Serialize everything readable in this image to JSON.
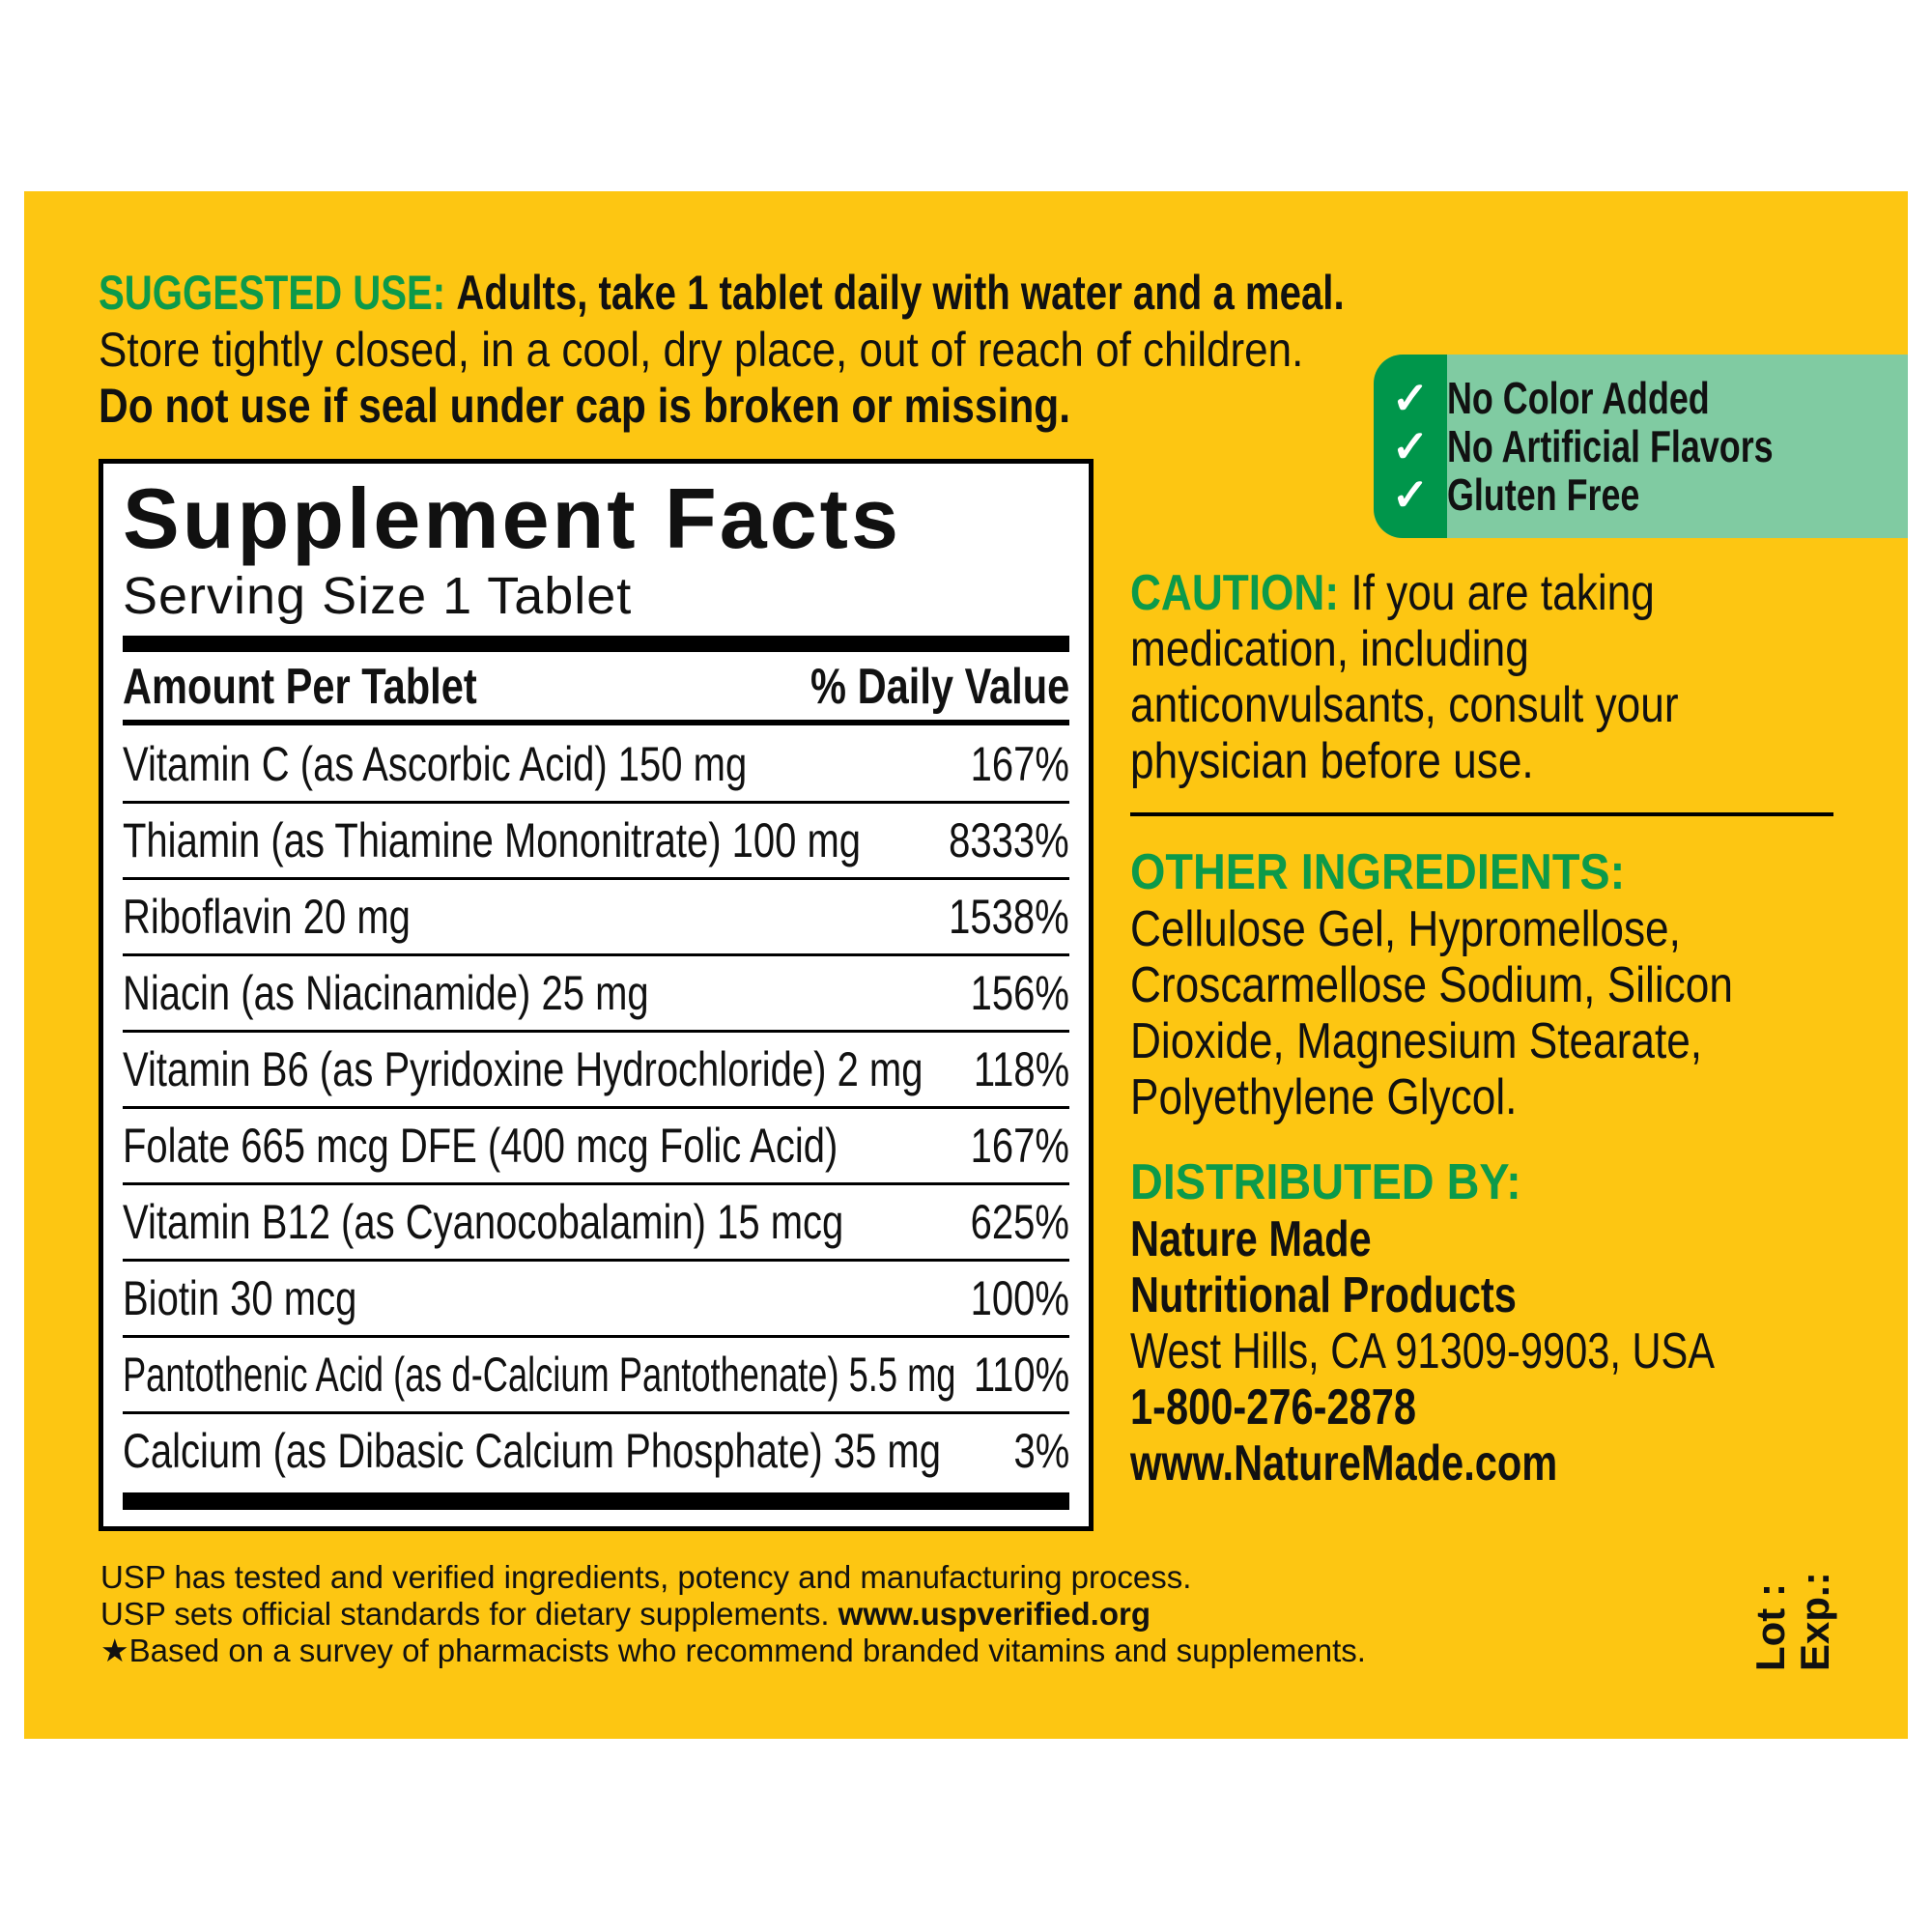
{
  "suggested_use": {
    "label": "SUGGESTED USE:",
    "text": "Adults, take 1 tablet daily with water and a meal.",
    "store": "Store tightly closed, in a cool, dry place, out of reach of children.",
    "seal": "Do not use if seal under cap is broken or missing."
  },
  "badge": {
    "icon": "check-icon",
    "check": "✓",
    "items": [
      "No Color Added",
      "No Artificial Flavors",
      "Gluten Free"
    ]
  },
  "facts": {
    "title": "Supplement Facts",
    "serving": "Serving Size 1 Tablet",
    "col_amount": "Amount Per Tablet",
    "col_dv": "% Daily Value",
    "rows": [
      {
        "name": "Vitamin C (as Ascorbic Acid) 150 mg",
        "dv": "167%"
      },
      {
        "name": "Thiamin (as Thiamine Mononitrate) 100 mg",
        "dv": "8333%"
      },
      {
        "name": "Riboflavin 20 mg",
        "dv": "1538%"
      },
      {
        "name": "Niacin (as Niacinamide) 25 mg",
        "dv": "156%"
      },
      {
        "name": "Vitamin B6 (as Pyridoxine Hydrochloride) 2 mg",
        "dv": "118%"
      },
      {
        "name": "Folate 665 mcg DFE (400 mcg Folic Acid)",
        "dv": "167%"
      },
      {
        "name": "Vitamin B12 (as Cyanocobalamin) 15 mcg",
        "dv": "625%"
      },
      {
        "name": "Biotin 30 mcg",
        "dv": "100%"
      },
      {
        "name": "Pantothenic Acid (as d-Calcium Pantothenate) 5.5 mg",
        "dv": "110%"
      },
      {
        "name": "Calcium (as Dibasic Calcium Phosphate) 35 mg",
        "dv": "3%"
      }
    ]
  },
  "caution": {
    "label": "CAUTION:",
    "lines": [
      "If you are taking",
      "medication, including",
      "anticonvulsants, consult your",
      "physician before use."
    ]
  },
  "other": {
    "label": "OTHER INGREDIENTS:",
    "lines": [
      "Cellulose Gel, Hypromellose,",
      "Croscarmellose Sodium, Silicon",
      "Dioxide, Magnesium Stearate,",
      "Polyethylene Glycol."
    ]
  },
  "distributed": {
    "label": "DISTRIBUTED BY:",
    "name1": "Nature Made",
    "name2": "Nutritional Products",
    "address": "West Hills, CA 91309-9903, USA",
    "phone": "1-800-276-2878",
    "website": "www.NatureMade.com"
  },
  "footer": {
    "line1": "USP has tested and verified ingredients, potency and manufacturing process.",
    "line2": "USP sets official standards for dietary supplements.",
    "line2_link": "www.uspverified.org",
    "star": "★",
    "line3": "Based on a survey of pharmacists who recommend branded vitamins and supplements."
  },
  "lot": "Lot :",
  "exp": "Exp.:",
  "colors": {
    "background": "#FDC612",
    "green": "#0C9A4A",
    "badge_light": "#80CBA2",
    "badge_dark": "#00964B"
  }
}
